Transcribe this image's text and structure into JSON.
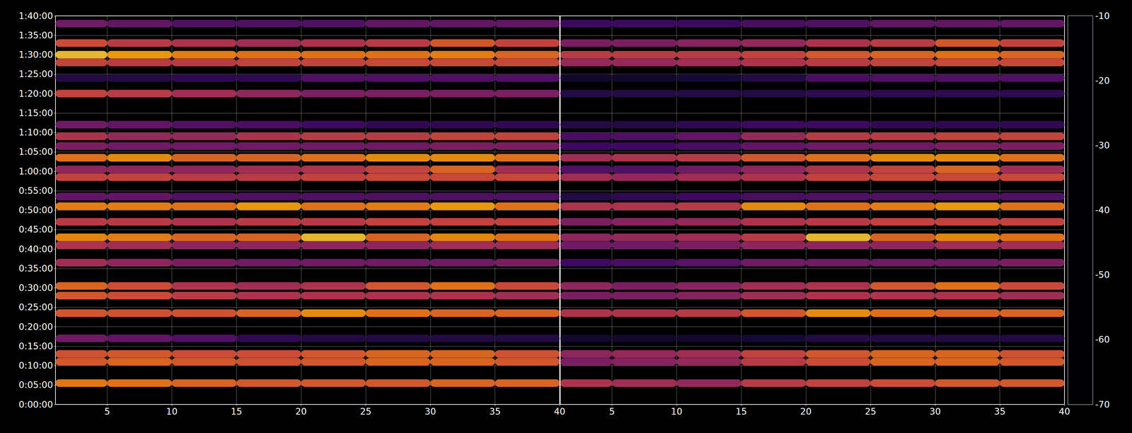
{
  "chart_data": {
    "type": "heatmap",
    "x": [
      2.5,
      7.5,
      12.5,
      17.5,
      22.5,
      27.5,
      32.5,
      37.5
    ],
    "y": [
      330,
      660,
      780,
      1020,
      1410,
      1680,
      1830,
      2190,
      2460,
      2580,
      2820,
      3060,
      3210,
      3510,
      3630,
      3810,
      3990,
      4140,
      4320,
      4800,
      5040,
      5280,
      5400,
      5580,
      5880
    ],
    "xlim": [
      1,
      40
    ],
    "xticks": [
      5,
      10,
      15,
      20,
      25,
      30,
      35,
      40
    ],
    "ylim": [
      0,
      6000
    ],
    "yticks": [
      {
        "value": 0,
        "label": "0:00:00"
      },
      {
        "value": 300,
        "label": "0:05:00"
      },
      {
        "value": 600,
        "label": "0:10:00"
      },
      {
        "value": 900,
        "label": "0:15:00"
      },
      {
        "value": 1200,
        "label": "0:20:00"
      },
      {
        "value": 1500,
        "label": "0:25:00"
      },
      {
        "value": 1800,
        "label": "0:30:00"
      },
      {
        "value": 2100,
        "label": "0:35:00"
      },
      {
        "value": 2400,
        "label": "0:40:00"
      },
      {
        "value": 2700,
        "label": "0:45:00"
      },
      {
        "value": 3000,
        "label": "0:50:00"
      },
      {
        "value": 3300,
        "label": "0:55:00"
      },
      {
        "value": 3600,
        "label": "1:00:00"
      },
      {
        "value": 3900,
        "label": "1:05:00"
      },
      {
        "value": 4200,
        "label": "1:10:00"
      },
      {
        "value": 4500,
        "label": "1:15:00"
      },
      {
        "value": 4800,
        "label": "1:20:00"
      },
      {
        "value": 5100,
        "label": "1:25:00"
      },
      {
        "value": 5400,
        "label": "1:30:00"
      },
      {
        "value": 5700,
        "label": "1:35:00"
      },
      {
        "value": 6000,
        "label": "1:40:00"
      }
    ],
    "grid": true,
    "colorbar": {
      "range": [
        -70,
        -10
      ],
      "ticks": [
        -70,
        -60,
        -50,
        -40,
        -30,
        -20,
        -10
      ]
    },
    "panels": [
      {
        "values": [
          [
            -27,
            -28,
            -30,
            -32,
            -32,
            -32,
            -30,
            -30
          ],
          [
            -32,
            -30,
            -32,
            -33,
            -32,
            -30,
            -30,
            -32
          ],
          [
            -33,
            -32,
            -34,
            -34,
            -32,
            -30,
            -30,
            -33
          ],
          [
            -50,
            -52,
            -55,
            -60,
            -62,
            -62,
            -62,
            -62
          ],
          [
            -32,
            -33,
            -33,
            -30,
            -24,
            -28,
            -30,
            -30
          ],
          [
            -32,
            -34,
            -38,
            -40,
            -40,
            -40,
            -40,
            -42
          ],
          [
            -30,
            -34,
            -40,
            -42,
            -40,
            -32,
            -28,
            -35
          ],
          [
            -42,
            -45,
            -48,
            -50,
            -50,
            -50,
            -50,
            -48
          ],
          [
            -40,
            -42,
            -45,
            -45,
            -45,
            -45,
            -42,
            -42
          ],
          [
            -25,
            -26,
            -30,
            -30,
            -18,
            -30,
            -25,
            -28
          ],
          [
            -38,
            -38,
            -40,
            -38,
            -38,
            -36,
            -36,
            -36
          ],
          [
            -26,
            -26,
            -28,
            -22,
            -28,
            -26,
            -22,
            -28
          ],
          [
            -52,
            -52,
            -55,
            -55,
            -55,
            -55,
            -55,
            -55
          ],
          [
            -36,
            -36,
            -38,
            -38,
            -36,
            -35,
            -35,
            -35
          ],
          [
            -45,
            -45,
            -45,
            -42,
            -40,
            -36,
            -30,
            -42
          ],
          [
            -28,
            -24,
            -30,
            -30,
            -28,
            -24,
            -24,
            -28
          ],
          [
            -48,
            -50,
            -50,
            -50,
            -50,
            -50,
            -48,
            -48
          ],
          [
            -40,
            -44,
            -44,
            -40,
            -38,
            -38,
            -36,
            -36
          ],
          [
            -50,
            -52,
            -55,
            -56,
            -58,
            -60,
            -60,
            -60
          ],
          [
            -36,
            -38,
            -42,
            -45,
            -48,
            -48,
            -48,
            -48
          ],
          [
            -62,
            -62,
            -60,
            -60,
            -55,
            -55,
            -55,
            -55
          ],
          [
            -36,
            -38,
            -38,
            -36,
            -36,
            -35,
            -35,
            -35
          ],
          [
            -18,
            -22,
            -26,
            -28,
            -28,
            -28,
            -26,
            -30
          ],
          [
            -34,
            -38,
            -40,
            -42,
            -40,
            -38,
            -32,
            -36
          ],
          [
            -50,
            -52,
            -55,
            -55,
            -55,
            -52,
            -52,
            -52
          ]
        ]
      },
      {
        "values": [
          [
            -40,
            -42,
            -44,
            -38,
            -36,
            -34,
            -32,
            -32
          ],
          [
            -48,
            -46,
            -44,
            -38,
            -34,
            -30,
            -30,
            -32
          ],
          [
            -45,
            -44,
            -42,
            -36,
            -32,
            -30,
            -30,
            -33
          ],
          [
            -65,
            -65,
            -65,
            -64,
            -62,
            -62,
            -62,
            -62
          ],
          [
            -40,
            -40,
            -38,
            -32,
            -24,
            -28,
            -30,
            -30
          ],
          [
            -48,
            -48,
            -46,
            -42,
            -40,
            -40,
            -40,
            -42
          ],
          [
            -45,
            -48,
            -46,
            -42,
            -40,
            -32,
            -28,
            -35
          ],
          [
            -58,
            -56,
            -54,
            -50,
            -50,
            -50,
            -50,
            -48
          ],
          [
            -50,
            -50,
            -48,
            -45,
            -45,
            -45,
            -42,
            -42
          ],
          [
            -45,
            -44,
            -42,
            -38,
            -18,
            -30,
            -25,
            -28
          ],
          [
            -48,
            -46,
            -44,
            -40,
            -38,
            -36,
            -36,
            -36
          ],
          [
            -40,
            -40,
            -38,
            -24,
            -28,
            -26,
            -22,
            -28
          ],
          [
            -62,
            -60,
            -58,
            -56,
            -55,
            -55,
            -55,
            -55
          ],
          [
            -42,
            -44,
            -42,
            -40,
            -36,
            -35,
            -35,
            -35
          ],
          [
            -55,
            -55,
            -50,
            -45,
            -40,
            -36,
            -30,
            -42
          ],
          [
            -42,
            -40,
            -38,
            -32,
            -28,
            -24,
            -24,
            -28
          ],
          [
            -58,
            -58,
            -56,
            -52,
            -50,
            -50,
            -48,
            -48
          ],
          [
            -56,
            -55,
            -52,
            -44,
            -38,
            -38,
            -36,
            -36
          ],
          [
            -62,
            -62,
            -60,
            -58,
            -58,
            -60,
            -60,
            -60
          ],
          [
            -62,
            -62,
            -62,
            -62,
            -60,
            -60,
            -60,
            -60
          ],
          [
            -65,
            -65,
            -64,
            -62,
            -56,
            -55,
            -55,
            -55
          ],
          [
            -44,
            -44,
            -42,
            -40,
            -38,
            -36,
            -35,
            -35
          ],
          [
            -38,
            -38,
            -38,
            -36,
            -32,
            -30,
            -28,
            -30
          ],
          [
            -48,
            -48,
            -46,
            -44,
            -40,
            -38,
            -32,
            -36
          ],
          [
            -58,
            -58,
            -58,
            -56,
            -55,
            -52,
            -52,
            -52
          ]
        ]
      }
    ]
  }
}
